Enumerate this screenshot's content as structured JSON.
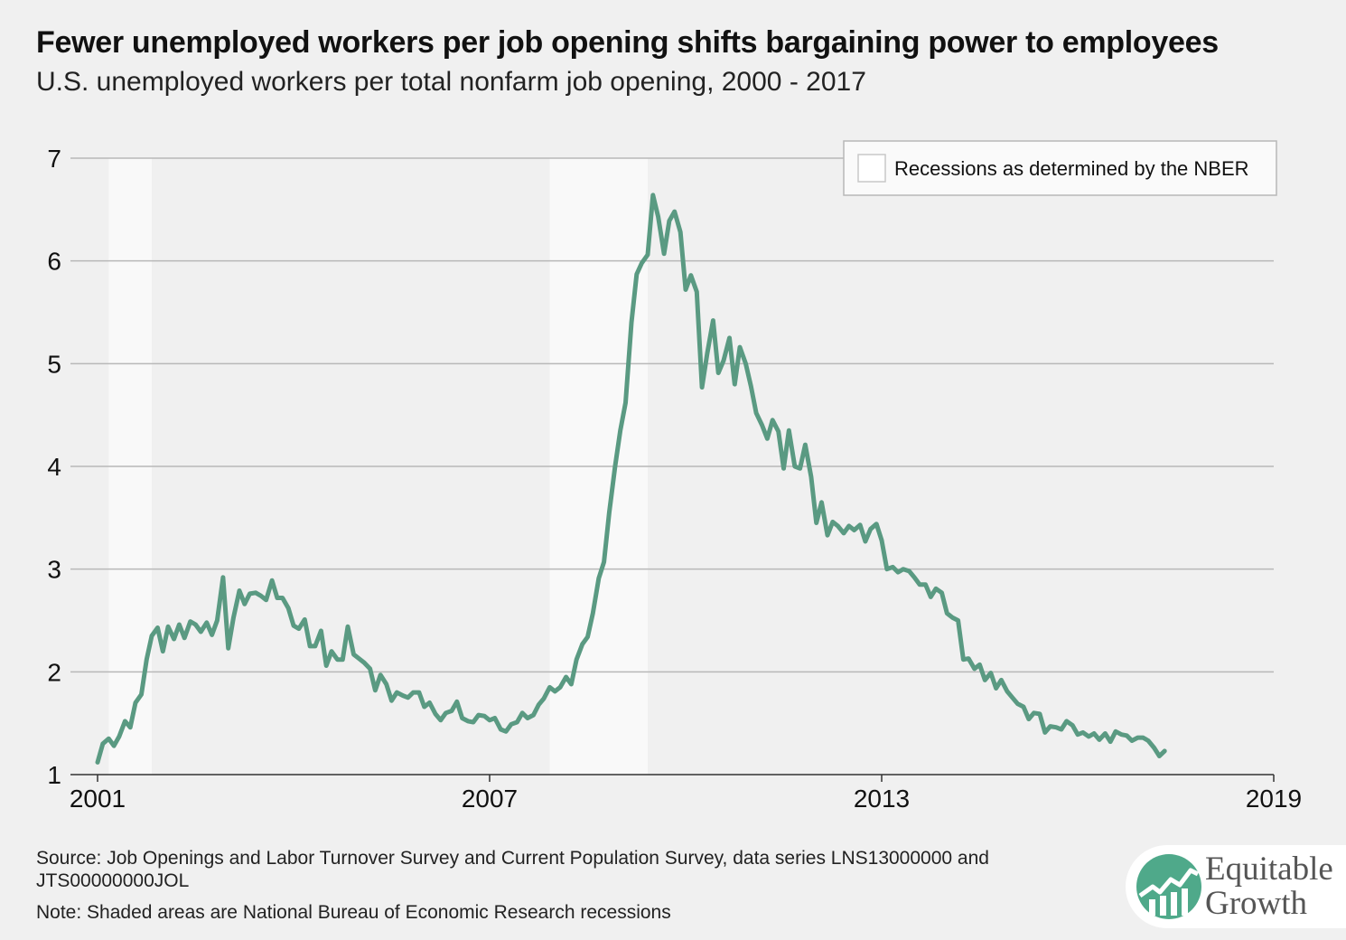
{
  "header": {
    "title": "Fewer unemployed workers per job opening shifts bargaining power to employees",
    "subtitle": "U.S. unemployed workers per total nonfarm job opening, 2000 - 2017"
  },
  "footer": {
    "source": "Source: Job Openings and Labor Turnover Survey and Current Population Survey, data series LNS13000000 and JTS00000000JOL",
    "note": "Note: Shaded areas are National Bureau of Economic Research recessions"
  },
  "logo": {
    "line1": "Equitable",
    "line2": "Growth"
  },
  "colors": {
    "background": "#f0f0f0",
    "line": "#5a9a82",
    "recession": "#f9f9f9",
    "grid": "#b8b8b8",
    "logo_green": "#4fa98a"
  },
  "chart_data": {
    "type": "line",
    "title": "Fewer unemployed workers per job opening shifts bargaining power to employees",
    "subtitle": "U.S. unemployed workers per total nonfarm job opening, 2000 - 2017",
    "xlabel": "",
    "ylabel": "",
    "xlim": [
      2001,
      2019
    ],
    "ylim": [
      1,
      7
    ],
    "x_ticks": [
      "2001",
      "2007",
      "2013",
      "2019"
    ],
    "y_ticks": [
      "1",
      "2",
      "3",
      "4",
      "5",
      "6",
      "7"
    ],
    "grid": "horizontal",
    "legend": {
      "placement": "top-right",
      "entries": [
        "Recessions as determined by the NBER"
      ]
    },
    "recessions": [
      [
        2001.17,
        2001.83
      ],
      [
        2007.92,
        2009.42
      ]
    ],
    "series": [
      {
        "x": [
          2001.0,
          2001.08,
          2001.17,
          2001.25,
          2001.33,
          2001.42,
          2001.5,
          2001.58,
          2001.67,
          2001.75,
          2001.83,
          2001.92,
          2002.0,
          2002.08,
          2002.17,
          2002.25,
          2002.33,
          2002.42,
          2002.5,
          2002.58,
          2002.67,
          2002.75,
          2002.83,
          2002.92,
          2003.0,
          2003.08,
          2003.17,
          2003.25,
          2003.33,
          2003.42,
          2003.5,
          2003.58,
          2003.67,
          2003.75,
          2003.83,
          2003.92,
          2004.0,
          2004.08,
          2004.17,
          2004.25,
          2004.33,
          2004.42,
          2004.5,
          2004.58,
          2004.67,
          2004.75,
          2004.83,
          2004.92,
          2005.0,
          2005.08,
          2005.17,
          2005.25,
          2005.33,
          2005.42,
          2005.5,
          2005.58,
          2005.67,
          2005.75,
          2005.83,
          2005.92,
          2006.0,
          2006.08,
          2006.17,
          2006.25,
          2006.33,
          2006.42,
          2006.5,
          2006.58,
          2006.67,
          2006.75,
          2006.83,
          2006.92,
          2007.0,
          2007.08,
          2007.17,
          2007.25,
          2007.33,
          2007.42,
          2007.5,
          2007.58,
          2007.67,
          2007.75,
          2007.83,
          2007.92,
          2008.0,
          2008.08,
          2008.17,
          2008.25,
          2008.33,
          2008.42,
          2008.5,
          2008.58,
          2008.67,
          2008.75,
          2008.83,
          2008.92,
          2009.0,
          2009.08,
          2009.17,
          2009.25,
          2009.33,
          2009.42,
          2009.5,
          2009.58,
          2009.67,
          2009.75,
          2009.83,
          2009.92,
          2010.0,
          2010.08,
          2010.17,
          2010.25,
          2010.33,
          2010.42,
          2010.5,
          2010.58,
          2010.67,
          2010.75,
          2010.83,
          2010.92,
          2011.0,
          2011.08,
          2011.17,
          2011.25,
          2011.33,
          2011.42,
          2011.5,
          2011.58,
          2011.67,
          2011.75,
          2011.83,
          2011.92,
          2012.0,
          2012.08,
          2012.17,
          2012.25,
          2012.33,
          2012.42,
          2012.5,
          2012.58,
          2012.67,
          2012.75,
          2012.83,
          2012.92,
          2013.0,
          2013.08,
          2013.17,
          2013.25,
          2013.33,
          2013.42,
          2013.5,
          2013.58,
          2013.67,
          2013.75,
          2013.83,
          2013.92,
          2014.0,
          2014.08,
          2014.17,
          2014.25,
          2014.33,
          2014.42,
          2014.5,
          2014.58,
          2014.67,
          2014.75,
          2014.83,
          2014.92,
          2015.0,
          2015.08,
          2015.17,
          2015.25,
          2015.33,
          2015.42,
          2015.5,
          2015.58,
          2015.67,
          2015.75,
          2015.83,
          2015.92,
          2016.0,
          2016.08,
          2016.17,
          2016.25,
          2016.33,
          2016.42,
          2016.5,
          2016.58,
          2016.67,
          2016.75,
          2016.83,
          2016.92,
          2017.0,
          2017.08,
          2017.17,
          2017.25,
          2017.33
        ],
        "values": [
          1.12,
          1.3,
          1.35,
          1.28,
          1.37,
          1.52,
          1.46,
          1.7,
          1.78,
          2.12,
          2.35,
          2.43,
          2.2,
          2.44,
          2.32,
          2.46,
          2.33,
          2.49,
          2.46,
          2.39,
          2.48,
          2.36,
          2.5,
          2.92,
          2.23,
          2.53,
          2.79,
          2.66,
          2.76,
          2.77,
          2.74,
          2.7,
          2.89,
          2.72,
          2.72,
          2.62,
          2.45,
          2.42,
          2.51,
          2.25,
          2.25,
          2.4,
          2.06,
          2.2,
          2.12,
          2.12,
          2.44,
          2.17,
          2.13,
          2.09,
          2.03,
          1.82,
          1.97,
          1.88,
          1.72,
          1.8,
          1.77,
          1.75,
          1.8,
          1.8,
          1.66,
          1.7,
          1.59,
          1.53,
          1.6,
          1.62,
          1.71,
          1.55,
          1.52,
          1.51,
          1.58,
          1.57,
          1.53,
          1.55,
          1.44,
          1.42,
          1.49,
          1.51,
          1.6,
          1.55,
          1.58,
          1.68,
          1.74,
          1.85,
          1.81,
          1.85,
          1.95,
          1.88,
          2.12,
          2.27,
          2.34,
          2.57,
          2.91,
          3.07,
          3.55,
          4.0,
          4.35,
          4.62,
          5.4,
          5.87,
          5.98,
          6.06,
          6.64,
          6.43,
          6.07,
          6.39,
          6.48,
          6.28,
          5.72,
          5.86,
          5.7,
          4.77,
          5.1,
          5.42,
          4.91,
          5.03,
          5.25,
          4.8,
          5.16,
          5.0,
          4.78,
          4.52,
          4.4,
          4.27,
          4.45,
          4.34,
          3.98,
          4.35,
          4.0,
          3.98,
          4.21,
          3.9,
          3.45,
          3.65,
          3.33,
          3.46,
          3.42,
          3.35,
          3.42,
          3.38,
          3.43,
          3.27,
          3.39,
          3.44,
          3.28,
          3.0,
          3.02,
          2.97,
          3.0,
          2.98,
          2.92,
          2.85,
          2.85,
          2.73,
          2.81,
          2.77,
          2.57,
          2.53,
          2.5,
          2.12,
          2.13,
          2.03,
          2.07,
          1.92,
          1.99,
          1.84,
          1.92,
          1.81,
          1.75,
          1.69,
          1.66,
          1.54,
          1.6,
          1.59,
          1.41,
          1.47,
          1.46,
          1.44,
          1.52,
          1.48,
          1.39,
          1.41,
          1.37,
          1.4,
          1.34,
          1.4,
          1.32,
          1.42,
          1.39,
          1.38,
          1.33,
          1.36,
          1.36,
          1.33,
          1.26,
          1.18,
          1.23
        ]
      }
    ]
  }
}
